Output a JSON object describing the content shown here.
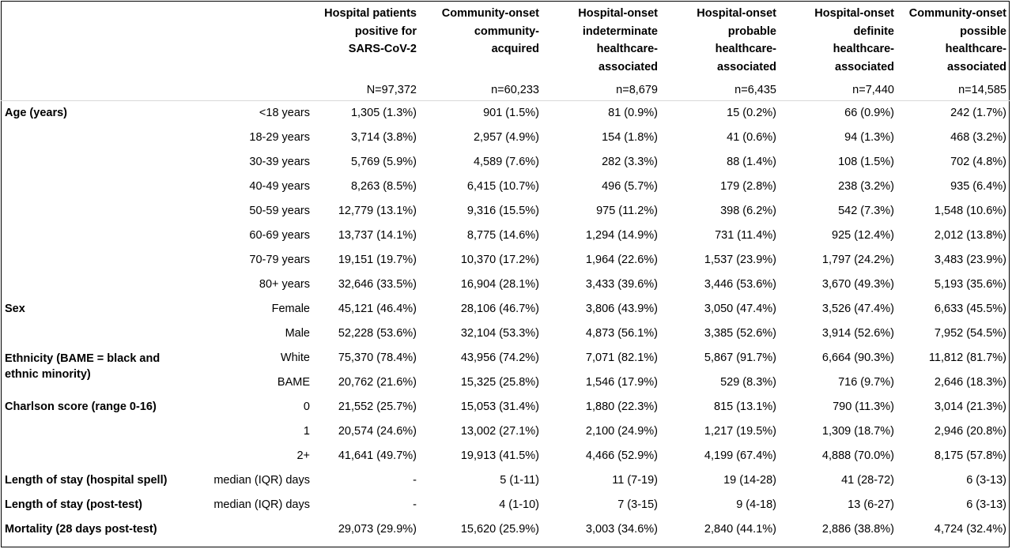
{
  "header": {
    "columns": [
      {
        "label_lines": [
          "Hospital patients",
          "positive for",
          "SARS-CoV-2"
        ],
        "n": "N=97,372"
      },
      {
        "label_lines": [
          "Community-onset",
          "community-",
          "acquired"
        ],
        "n": "n=60,233"
      },
      {
        "label_lines": [
          "Hospital-onset",
          "indeterminate",
          "healthcare-",
          "associated"
        ],
        "n": "n=8,679"
      },
      {
        "label_lines": [
          "Hospital-onset",
          "probable",
          "healthcare-",
          "associated"
        ],
        "n": "n=6,435"
      },
      {
        "label_lines": [
          "Hospital-onset",
          "definite",
          "healthcare-",
          "associated"
        ],
        "n": "n=7,440"
      },
      {
        "label_lines": [
          "Community-onset",
          "possible",
          "healthcare-",
          "associated"
        ],
        "n": "n=14,585"
      }
    ]
  },
  "groups": [
    {
      "category": "Age (years)",
      "rows": [
        {
          "label": "<18 years",
          "values": [
            "1,305 (1.3%)",
            "901 (1.5%)",
            "81 (0.9%)",
            "15 (0.2%)",
            "66 (0.9%)",
            "242 (1.7%)"
          ]
        },
        {
          "label": "18-29 years",
          "values": [
            "3,714 (3.8%)",
            "2,957 (4.9%)",
            "154 (1.8%)",
            "41 (0.6%)",
            "94 (1.3%)",
            "468 (3.2%)"
          ]
        },
        {
          "label": "30-39 years",
          "values": [
            "5,769 (5.9%)",
            "4,589 (7.6%)",
            "282 (3.3%)",
            "88 (1.4%)",
            "108 (1.5%)",
            "702 (4.8%)"
          ]
        },
        {
          "label": "40-49 years",
          "values": [
            "8,263 (8.5%)",
            "6,415 (10.7%)",
            "496 (5.7%)",
            "179 (2.8%)",
            "238 (3.2%)",
            "935 (6.4%)"
          ]
        },
        {
          "label": "50-59 years",
          "values": [
            "12,779 (13.1%)",
            "9,316 (15.5%)",
            "975 (11.2%)",
            "398 (6.2%)",
            "542 (7.3%)",
            "1,548 (10.6%)"
          ]
        },
        {
          "label": "60-69 years",
          "values": [
            "13,737 (14.1%)",
            "8,775 (14.6%)",
            "1,294 (14.9%)",
            "731 (11.4%)",
            "925 (12.4%)",
            "2,012 (13.8%)"
          ]
        },
        {
          "label": "70-79 years",
          "values": [
            "19,151 (19.7%)",
            "10,370 (17.2%)",
            "1,964 (22.6%)",
            "1,537 (23.9%)",
            "1,797 (24.2%)",
            "3,483 (23.9%)"
          ]
        },
        {
          "label": "80+ years",
          "values": [
            "32,646 (33.5%)",
            "16,904 (28.1%)",
            "3,433 (39.6%)",
            "3,446 (53.6%)",
            "3,670 (49.3%)",
            "5,193 (35.6%)"
          ]
        }
      ]
    },
    {
      "category": "Sex",
      "rows": [
        {
          "label": "Female",
          "values": [
            "45,121 (46.4%)",
            "28,106 (46.7%)",
            "3,806 (43.9%)",
            "3,050 (47.4%)",
            "3,526 (47.4%)",
            "6,633 (45.5%)"
          ]
        },
        {
          "label": "Male",
          "values": [
            "52,228 (53.6%)",
            "32,104 (53.3%)",
            "4,873 (56.1%)",
            "3,385 (52.6%)",
            "3,914 (52.6%)",
            "7,952 (54.5%)"
          ]
        }
      ]
    },
    {
      "category": "Ethnicity (BAME = black and ethnic minority)",
      "wrap": true,
      "rows": [
        {
          "label": "White",
          "values": [
            "75,370 (78.4%)",
            "43,956 (74.2%)",
            "7,071 (82.1%)",
            "5,867 (91.7%)",
            "6,664 (90.3%)",
            "11,812 (81.7%)"
          ]
        },
        {
          "label": "BAME",
          "values": [
            "20,762 (21.6%)",
            "15,325 (25.8%)",
            "1,546 (17.9%)",
            "529 (8.3%)",
            "716 (9.7%)",
            "2,646 (18.3%)"
          ]
        }
      ]
    },
    {
      "category": "Charlson score (range 0-16)",
      "rows": [
        {
          "label": "0",
          "values": [
            "21,552 (25.7%)",
            "15,053 (31.4%)",
            "1,880 (22.3%)",
            "815 (13.1%)",
            "790 (11.3%)",
            "3,014 (21.3%)"
          ]
        },
        {
          "label": "1",
          "values": [
            "20,574 (24.6%)",
            "13,002 (27.1%)",
            "2,100 (24.9%)",
            "1,217 (19.5%)",
            "1,309 (18.7%)",
            "2,946 (20.8%)"
          ]
        },
        {
          "label": "2+",
          "values": [
            "41,641 (49.7%)",
            "19,913 (41.5%)",
            "4,466 (52.9%)",
            "4,199 (67.4%)",
            "4,888 (70.0%)",
            "8,175 (57.8%)"
          ]
        }
      ]
    },
    {
      "category": "Length of stay (hospital spell)",
      "rows": [
        {
          "label": "median (IQR) days",
          "values": [
            "-",
            "5 (1-11)",
            "11 (7-19)",
            "19 (14-28)",
            "41 (28-72)",
            "6 (3-13)"
          ]
        }
      ]
    },
    {
      "category": "Length of stay (post-test)",
      "rows": [
        {
          "label": "median (IQR) days",
          "values": [
            "-",
            "4 (1-10)",
            "7 (3-15)",
            "9 (4-18)",
            "13 (6-27)",
            "6 (3-13)"
          ]
        }
      ]
    },
    {
      "category": "Mortality (28 days post-test)",
      "rows": [
        {
          "label": "",
          "values": [
            "29,073 (29.9%)",
            "15,620 (25.9%)",
            "3,003 (34.6%)",
            "2,840 (44.1%)",
            "2,886 (38.8%)",
            "4,724 (32.4%)"
          ]
        }
      ]
    }
  ]
}
